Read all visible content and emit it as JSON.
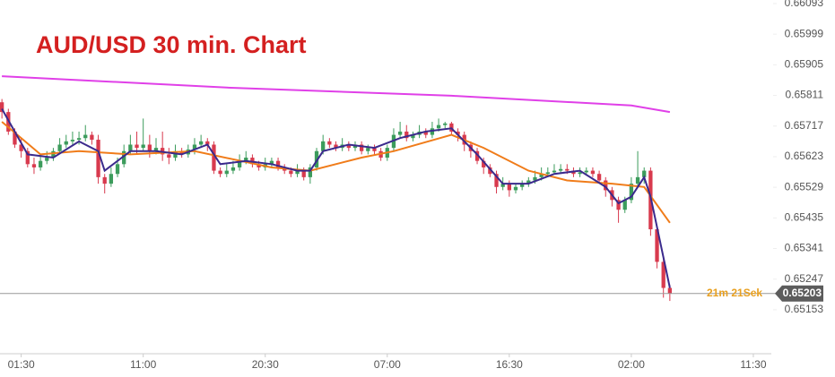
{
  "chart_data": {
    "type": "candlestick",
    "title": "AUD/USD 30 min. Chart",
    "ylim": [
      0.65018,
      0.66104
    ],
    "yticks": [
      0.66093,
      0.65999,
      0.65905,
      0.65811,
      0.65717,
      0.65623,
      0.65529,
      0.65435,
      0.65341,
      0.65247,
      0.65153
    ],
    "xlim": [
      -0.3,
      119.8
    ],
    "xticks": [
      {
        "value": 3,
        "label": "01:30"
      },
      {
        "value": 22,
        "label": "11:00"
      },
      {
        "value": 41,
        "label": "20:30"
      },
      {
        "value": 60,
        "label": "07:00"
      },
      {
        "value": 79,
        "label": "16:30"
      },
      {
        "value": 98,
        "label": "02:00"
      },
      {
        "value": 117,
        "label": "11:30"
      }
    ],
    "up_color": "#3c9c5c",
    "down_color": "#d83a4e",
    "ohlc": [
      [
        0.6579,
        0.658,
        0.6574,
        0.6576
      ],
      [
        0.6576,
        0.6577,
        0.6569,
        0.657
      ],
      [
        0.657,
        0.6571,
        0.6565,
        0.6566
      ],
      [
        0.6566,
        0.6568,
        0.6562,
        0.6564
      ],
      [
        0.6564,
        0.6565,
        0.6559,
        0.656
      ],
      [
        0.656,
        0.6562,
        0.6557,
        0.6559
      ],
      [
        0.6559,
        0.6563,
        0.6558,
        0.6561
      ],
      [
        0.6561,
        0.6564,
        0.656,
        0.6562
      ],
      [
        0.6562,
        0.6565,
        0.6561,
        0.6564
      ],
      [
        0.6564,
        0.6568,
        0.6563,
        0.6566
      ],
      [
        0.6566,
        0.6569,
        0.6565,
        0.6567
      ],
      [
        0.6567,
        0.657,
        0.6566,
        0.65675
      ],
      [
        0.65675,
        0.657,
        0.6566,
        0.6568
      ],
      [
        0.6568,
        0.6572,
        0.6567,
        0.6569
      ],
      [
        0.6569,
        0.657,
        0.6566,
        0.65675
      ],
      [
        0.65675,
        0.6569,
        0.6554,
        0.6556
      ],
      [
        0.6556,
        0.6557,
        0.6551,
        0.6554
      ],
      [
        0.6554,
        0.6559,
        0.6553,
        0.6557
      ],
      [
        0.6557,
        0.6562,
        0.6556,
        0.656
      ],
      [
        0.656,
        0.6566,
        0.6559,
        0.6564
      ],
      [
        0.6564,
        0.6569,
        0.6563,
        0.6566
      ],
      [
        0.6566,
        0.657,
        0.6563,
        0.6565
      ],
      [
        0.6565,
        0.6574,
        0.6564,
        0.6566
      ],
      [
        0.6566,
        0.6569,
        0.6562,
        0.6564
      ],
      [
        0.6564,
        0.6568,
        0.6563,
        0.6565
      ],
      [
        0.6565,
        0.657,
        0.6561,
        0.6563
      ],
      [
        0.6563,
        0.6565,
        0.656,
        0.6562
      ],
      [
        0.6562,
        0.6566,
        0.6561,
        0.6564
      ],
      [
        0.6564,
        0.6565,
        0.6562,
        0.6563
      ],
      [
        0.6563,
        0.6566,
        0.6562,
        0.65645
      ],
      [
        0.65645,
        0.6568,
        0.6563,
        0.6566
      ],
      [
        0.6566,
        0.6569,
        0.6565,
        0.6567
      ],
      [
        0.6567,
        0.6568,
        0.6564,
        0.6566
      ],
      [
        0.6566,
        0.6567,
        0.6557,
        0.6558
      ],
      [
        0.6558,
        0.6559,
        0.6556,
        0.6557
      ],
      [
        0.6557,
        0.656,
        0.6556,
        0.6558
      ],
      [
        0.6558,
        0.6561,
        0.6557,
        0.6559
      ],
      [
        0.6559,
        0.6563,
        0.6558,
        0.6561
      ],
      [
        0.6561,
        0.6564,
        0.656,
        0.6562
      ],
      [
        0.6562,
        0.6563,
        0.6559,
        0.656
      ],
      [
        0.656,
        0.6561,
        0.6558,
        0.6559
      ],
      [
        0.6559,
        0.6562,
        0.6558,
        0.656
      ],
      [
        0.656,
        0.6562,
        0.6559,
        0.6561
      ],
      [
        0.6561,
        0.6562,
        0.6558,
        0.6559
      ],
      [
        0.6559,
        0.656,
        0.6557,
        0.6558
      ],
      [
        0.6558,
        0.6559,
        0.6556,
        0.6557
      ],
      [
        0.6557,
        0.656,
        0.6556,
        0.6558
      ],
      [
        0.6558,
        0.6559,
        0.6555,
        0.6556
      ],
      [
        0.6556,
        0.656,
        0.6554,
        0.6559
      ],
      [
        0.6559,
        0.6565,
        0.6558,
        0.6564
      ],
      [
        0.6564,
        0.6569,
        0.6563,
        0.6567
      ],
      [
        0.6567,
        0.6568,
        0.6565,
        0.6566
      ],
      [
        0.6566,
        0.6567,
        0.6564,
        0.6565
      ],
      [
        0.6565,
        0.6568,
        0.6564,
        0.6566
      ],
      [
        0.6566,
        0.6567,
        0.6564,
        0.6565
      ],
      [
        0.6565,
        0.6567,
        0.6564,
        0.6566
      ],
      [
        0.6566,
        0.6567,
        0.6563,
        0.6564
      ],
      [
        0.6564,
        0.6566,
        0.6563,
        0.6565
      ],
      [
        0.6565,
        0.6566,
        0.6563,
        0.6564
      ],
      [
        0.6564,
        0.6565,
        0.6561,
        0.6562
      ],
      [
        0.6562,
        0.6566,
        0.6561,
        0.6565
      ],
      [
        0.6565,
        0.6571,
        0.6564,
        0.6569
      ],
      [
        0.6569,
        0.6573,
        0.6568,
        0.657
      ],
      [
        0.657,
        0.6572,
        0.6567,
        0.6568
      ],
      [
        0.6568,
        0.657,
        0.6567,
        0.6569
      ],
      [
        0.6569,
        0.6572,
        0.6568,
        0.657
      ],
      [
        0.657,
        0.6571,
        0.6568,
        0.6569
      ],
      [
        0.6569,
        0.6573,
        0.6568,
        0.6571
      ],
      [
        0.6571,
        0.6574,
        0.657,
        0.6572
      ],
      [
        0.6572,
        0.6573,
        0.6571,
        0.65725
      ],
      [
        0.65725,
        0.6573,
        0.6569,
        0.657
      ],
      [
        0.657,
        0.6571,
        0.6567,
        0.6569
      ],
      [
        0.6569,
        0.657,
        0.6564,
        0.6566
      ],
      [
        0.6566,
        0.6567,
        0.6562,
        0.6564
      ],
      [
        0.6564,
        0.6565,
        0.656,
        0.6561
      ],
      [
        0.6561,
        0.6562,
        0.6557,
        0.6559
      ],
      [
        0.6559,
        0.656,
        0.6556,
        0.6557
      ],
      [
        0.6557,
        0.6558,
        0.6551,
        0.6553
      ],
      [
        0.6553,
        0.6556,
        0.6552,
        0.6554
      ],
      [
        0.6554,
        0.6555,
        0.655,
        0.6552
      ],
      [
        0.6552,
        0.6554,
        0.6551,
        0.6553
      ],
      [
        0.6553,
        0.6555,
        0.6552,
        0.6554
      ],
      [
        0.6554,
        0.6556,
        0.6553,
        0.6555
      ],
      [
        0.6555,
        0.6558,
        0.6554,
        0.6556
      ],
      [
        0.6556,
        0.6559,
        0.6555,
        0.6557
      ],
      [
        0.6557,
        0.6559,
        0.6556,
        0.65575
      ],
      [
        0.65575,
        0.656,
        0.6557,
        0.6558
      ],
      [
        0.6558,
        0.656,
        0.6557,
        0.65585
      ],
      [
        0.65585,
        0.656,
        0.6557,
        0.6558
      ],
      [
        0.6558,
        0.6559,
        0.6556,
        0.6557
      ],
      [
        0.6557,
        0.6559,
        0.6556,
        0.65575
      ],
      [
        0.65575,
        0.6559,
        0.6557,
        0.6558
      ],
      [
        0.6558,
        0.6559,
        0.6556,
        0.6557
      ],
      [
        0.6557,
        0.6558,
        0.6554,
        0.6555
      ],
      [
        0.6555,
        0.6556,
        0.655,
        0.6552
      ],
      [
        0.6552,
        0.6553,
        0.6547,
        0.6549
      ],
      [
        0.6549,
        0.655,
        0.6542,
        0.6546
      ],
      [
        0.6546,
        0.655,
        0.6545,
        0.6549
      ],
      [
        0.6549,
        0.6556,
        0.6548,
        0.6554
      ],
      [
        0.6554,
        0.6564,
        0.6553,
        0.6556
      ],
      [
        0.6556,
        0.6559,
        0.6554,
        0.6558
      ],
      [
        0.6558,
        0.6559,
        0.6538,
        0.654
      ],
      [
        0.654,
        0.6541,
        0.6528,
        0.653
      ],
      [
        0.653,
        0.6531,
        0.6519,
        0.6522
      ],
      [
        0.6522,
        0.6523,
        0.6518,
        0.65203
      ]
    ],
    "lines": [
      {
        "color": "#e040e8",
        "x": [
          0,
          35,
          70,
          98,
          104
        ],
        "values": [
          0.6587,
          0.65835,
          0.6581,
          0.6578,
          0.6576
        ]
      },
      {
        "color": "#f07c1a",
        "x": [
          0,
          6,
          12,
          20,
          30,
          42,
          48,
          56,
          61,
          70,
          75,
          82,
          88,
          95,
          100,
          104
        ],
        "values": [
          0.6573,
          0.6563,
          0.6564,
          0.6563,
          0.6564,
          0.6559,
          0.6558,
          0.6562,
          0.6564,
          0.6569,
          0.6565,
          0.6558,
          0.6555,
          0.6554,
          0.6553,
          0.6542
        ]
      },
      {
        "color": "#3b2a8c",
        "x": [
          0,
          4,
          8,
          12,
          15,
          16,
          20,
          24,
          28,
          32,
          34,
          38,
          42,
          46,
          48,
          50,
          54,
          58,
          62,
          66,
          70,
          74,
          78,
          82,
          86,
          90,
          94,
          96,
          98,
          100,
          101,
          104
        ],
        "values": [
          0.6577,
          0.6563,
          0.6562,
          0.6567,
          0.6564,
          0.6558,
          0.6564,
          0.6564,
          0.6563,
          0.6566,
          0.656,
          0.6561,
          0.656,
          0.6558,
          0.6558,
          0.6564,
          0.6566,
          0.6565,
          0.6568,
          0.657,
          0.6571,
          0.6563,
          0.6554,
          0.6554,
          0.6557,
          0.6558,
          0.6553,
          0.6548,
          0.655,
          0.6556,
          0.655,
          0.6522
        ]
      }
    ],
    "last_price": 0.65203,
    "countdown": "21m 21Sek"
  }
}
